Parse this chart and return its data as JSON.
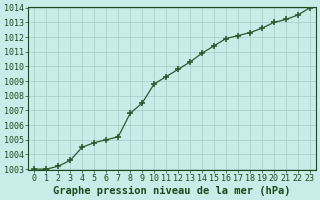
{
  "x": [
    0,
    1,
    2,
    3,
    4,
    5,
    6,
    7,
    8,
    9,
    10,
    11,
    12,
    13,
    14,
    15,
    16,
    17,
    18,
    19,
    20,
    21,
    22,
    23
  ],
  "y": [
    1003.0,
    1003.0,
    1003.2,
    1003.6,
    1004.5,
    1004.8,
    1005.0,
    1005.2,
    1006.8,
    1007.5,
    1008.8,
    1009.3,
    1009.8,
    1010.3,
    1010.9,
    1011.4,
    1011.9,
    1012.1,
    1012.3,
    1012.6,
    1013.0,
    1013.2,
    1013.5,
    1014.0
  ],
  "ylim": [
    1003,
    1014
  ],
  "xlim": [
    -0.5,
    23.5
  ],
  "yticks": [
    1003,
    1004,
    1005,
    1006,
    1007,
    1008,
    1009,
    1010,
    1011,
    1012,
    1013,
    1014
  ],
  "xticks": [
    0,
    1,
    2,
    3,
    4,
    5,
    6,
    7,
    8,
    9,
    10,
    11,
    12,
    13,
    14,
    15,
    16,
    17,
    18,
    19,
    20,
    21,
    22,
    23
  ],
  "line_color": "#2d5a2d",
  "marker": "+",
  "marker_size": 5,
  "marker_lw": 1.2,
  "line_width": 0.9,
  "bg_color": "#c8ece8",
  "grid_color": "#a8c8c4",
  "xlabel": "Graphe pression niveau de la mer (hPa)",
  "xlabel_color": "#1a4a1a",
  "xlabel_fontsize": 7.5,
  "tick_label_color": "#1a4a1a",
  "tick_label_fontsize": 6,
  "border_color": "#1a4a1a",
  "figsize": [
    3.2,
    2.0
  ],
  "dpi": 100
}
